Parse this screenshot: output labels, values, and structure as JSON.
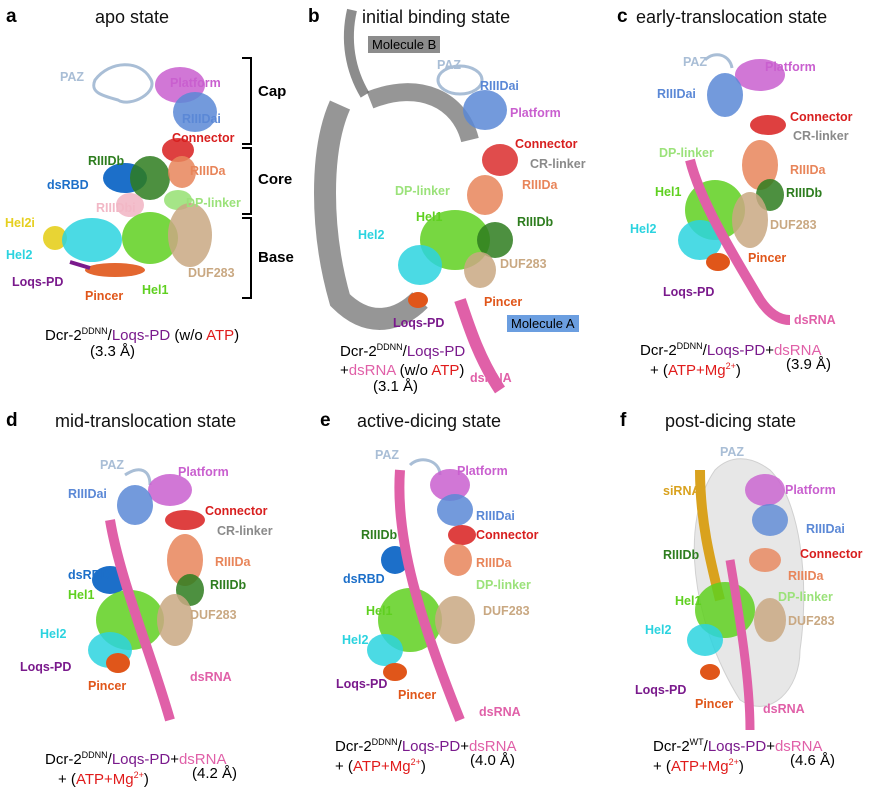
{
  "colors": {
    "PAZ": "#a9bed6",
    "Platform": "#c95fcf",
    "RIIIDai": "#5b88d6",
    "Connector": "#d81f1f",
    "CR-linker": "#8a8a8a",
    "RIIIDa": "#e8855a",
    "RIIIDb": "#2e7d1f",
    "dsRBD": "#1c6fc9",
    "RIIIDbi": "#f2b8c6",
    "DP-linker": "#9be27a",
    "Hel2i": "#e6cf1e",
    "Hel2": "#2bd3df",
    "Hel1": "#5fd020",
    "DUF283": "#c9a882",
    "Loqs-PD": "#7a1a8c",
    "Pincer": "#e0561a",
    "dsRNA": "#e060a8",
    "siRNA": "#d9a21e",
    "ATP": "#e01b1b",
    "moleculeB": "#8c8c8c",
    "moleculeA": "#6b9ee0"
  },
  "panels": [
    {
      "letter": "a",
      "title": "apo state",
      "labels": {
        "PAZ": "PAZ",
        "Platform": "Platform",
        "RIIIDai": "RIIIDai",
        "Connector": "Connector",
        "RIIIDb": "RIIIDb",
        "RIIIDa": "RIIIDa",
        "dsRBD": "dsRBD",
        "RIIIDbi": "RIIIDbi",
        "DP-linker": "DP-linker",
        "Hel2i": "Hel2i",
        "Hel2": "Hel2",
        "DUF283": "DUF283",
        "Loqs-PD": "Loqs-PD",
        "Pincer": "Pincer",
        "Hel1": "Hel1"
      },
      "brackets": [
        "Cap",
        "Core",
        "Base"
      ],
      "caption": {
        "dcr": "Dcr-2",
        "sup": "DDNN",
        "slash": "/",
        "loqs": "Loqs-PD",
        "open": " (w/o ",
        "atp": "ATP",
        "close": ")"
      },
      "resolution": "(3.3 Å)"
    },
    {
      "letter": "b",
      "title": "initial binding state",
      "labels": {
        "MoleculeB": "Molecule B",
        "PAZ": "PAZ",
        "RIIIDai": "RIIIDai",
        "Platform": "Platform",
        "Connector": "Connector",
        "CR-linker": "CR-linker",
        "RIIIDa": "RIIIDa",
        "DP-linker": "DP-linker",
        "Hel1": "Hel1",
        "RIIIDb": "RIIIDb",
        "Hel2": "Hel2",
        "DUF283": "DUF283",
        "Pincer": "Pincer",
        "MoleculeA": "Molecule A",
        "Loqs-PD": "Loqs-PD",
        "dsRNA": "dsRNA"
      },
      "caption": {
        "dcr": "Dcr-2",
        "sup": "DDNN",
        "slash": "/",
        "loqs": "Loqs-PD",
        "plus": "+",
        "rna": "dsRNA",
        "open": " (w/o ",
        "atp": "ATP",
        "close": ")"
      },
      "resolution": "(3.1 Å)"
    },
    {
      "letter": "c",
      "title": "early-translocation state",
      "labels": {
        "PAZ": "PAZ",
        "Platform": "Platform",
        "RIIIDai": "RIIIDai",
        "Connector": "Connector",
        "CR-linker": "CR-linker",
        "DP-linker": "DP-linker",
        "RIIIDa": "RIIIDa",
        "Hel1": "Hel1",
        "RIIIDb": "RIIIDb",
        "Hel2": "Hel2",
        "DUF283": "DUF283",
        "Pincer": "Pincer",
        "Loqs-PD": "Loqs-PD",
        "dsRNA": "dsRNA"
      },
      "caption": {
        "dcr": "Dcr-2",
        "sup": "DDNN",
        "slash": "/",
        "loqs": "Loqs-PD",
        "plus": "+",
        "rna": "dsRNA",
        "line2open": "+ (",
        "atp": "ATP+Mg",
        "mgsup": "2+",
        "line2close": ")"
      },
      "resolution": "(3.9 Å)"
    },
    {
      "letter": "d",
      "title": "mid-translocation state",
      "labels": {
        "PAZ": "PAZ",
        "Platform": "Platform",
        "RIIIDai": "RIIIDai",
        "Connector": "Connector",
        "CR-linker": "CR-linker",
        "RIIIDa": "RIIIDa",
        "dsRBD": "dsRBD",
        "RIIIDb": "RIIIDb",
        "Hel1": "Hel1",
        "DUF283": "DUF283",
        "Hel2": "Hel2",
        "Loqs-PD": "Loqs-PD",
        "Pincer": "Pincer",
        "dsRNA": "dsRNA"
      },
      "caption": {
        "dcr": "Dcr-2",
        "sup": "DDNN",
        "slash": "/",
        "loqs": "Loqs-PD",
        "plus": "+",
        "rna": "dsRNA",
        "line2open": "+ (",
        "atp": "ATP+Mg",
        "mgsup": "2+",
        "line2close": ")"
      },
      "resolution": "(4.2 Å)"
    },
    {
      "letter": "e",
      "title": "active-dicing state",
      "labels": {
        "PAZ": "PAZ",
        "Platform": "Platform",
        "RIIIDai": "RIIIDai",
        "RIIIDb": "RIIIDb",
        "Connector": "Connector",
        "RIIIDa": "RIIIDa",
        "dsRBD": "dsRBD",
        "DP-linker": "DP-linker",
        "DUF283": "DUF283",
        "Hel1": "Hel1",
        "Hel2": "Hel2",
        "Loqs-PD": "Loqs-PD",
        "Pincer": "Pincer",
        "dsRNA": "dsRNA"
      },
      "caption": {
        "dcr": "Dcr-2",
        "sup": "DDNN",
        "slash": "/",
        "loqs": "Loqs-PD",
        "plus": "+",
        "rna": "dsRNA",
        "line2open": "+ (",
        "atp": "ATP+Mg",
        "mgsup": "2+",
        "line2close": ")"
      },
      "resolution": "(4.0 Å)"
    },
    {
      "letter": "f",
      "title": "post-dicing state",
      "labels": {
        "PAZ": "PAZ",
        "siRNA": "siRNA",
        "Platform": "Platform",
        "RIIIDai": "RIIIDai",
        "RIIIDb": "RIIIDb",
        "Connector": "Connector",
        "RIIIDa": "RIIIDa",
        "Hel1": "Hel1",
        "DP-linker": "DP-linker",
        "DUF283": "DUF283",
        "Hel2": "Hel2",
        "Loqs-PD": "Loqs-PD",
        "Pincer": "Pincer",
        "dsRNA": "dsRNA"
      },
      "caption": {
        "dcr": "Dcr-2",
        "sup": "WT",
        "slash": "/",
        "loqs": "Loqs-PD",
        "plus": "+",
        "rna": "dsRNA",
        "line2open": "+ (",
        "atp": "ATP+Mg",
        "mgsup": "2+",
        "line2close": ")"
      },
      "resolution": "(4.6 Å)"
    }
  ]
}
